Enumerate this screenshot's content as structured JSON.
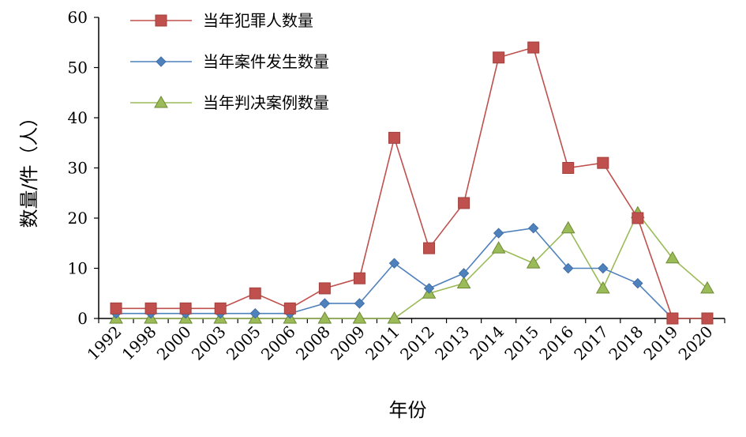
{
  "chart_data": {
    "type": "line",
    "title": "",
    "xlabel": "年份",
    "ylabel": "数量/件（人）",
    "categories": [
      "1992",
      "1998",
      "2000",
      "2003",
      "2005",
      "2006",
      "2008",
      "2009",
      "2011",
      "2012",
      "2013",
      "2014",
      "2015",
      "2016",
      "2017",
      "2018",
      "2019",
      "2020"
    ],
    "ylim": [
      0,
      60
    ],
    "yticks": [
      0,
      10,
      20,
      30,
      40,
      50,
      60
    ],
    "grid": false,
    "legend_position": "top-left",
    "series": [
      {
        "name": "当年犯罪人数量",
        "color": "#c0504d",
        "marker": "square",
        "values": [
          2,
          2,
          2,
          2,
          5,
          2,
          6,
          8,
          36,
          14,
          23,
          52,
          54,
          30,
          31,
          20,
          0,
          0
        ]
      },
      {
        "name": "当年案件发生数量",
        "color": "#4f81bd",
        "marker": "diamond",
        "values": [
          1,
          1,
          1,
          1,
          1,
          1,
          3,
          3,
          11,
          6,
          9,
          17,
          18,
          10,
          10,
          7,
          0,
          null
        ]
      },
      {
        "name": "当年判决案例数量",
        "color": "#9bbb59",
        "marker": "triangle",
        "values": [
          0,
          0,
          0,
          0,
          0,
          0,
          0,
          0,
          0,
          5,
          7,
          14,
          11,
          18,
          6,
          21,
          12,
          6
        ]
      }
    ]
  }
}
